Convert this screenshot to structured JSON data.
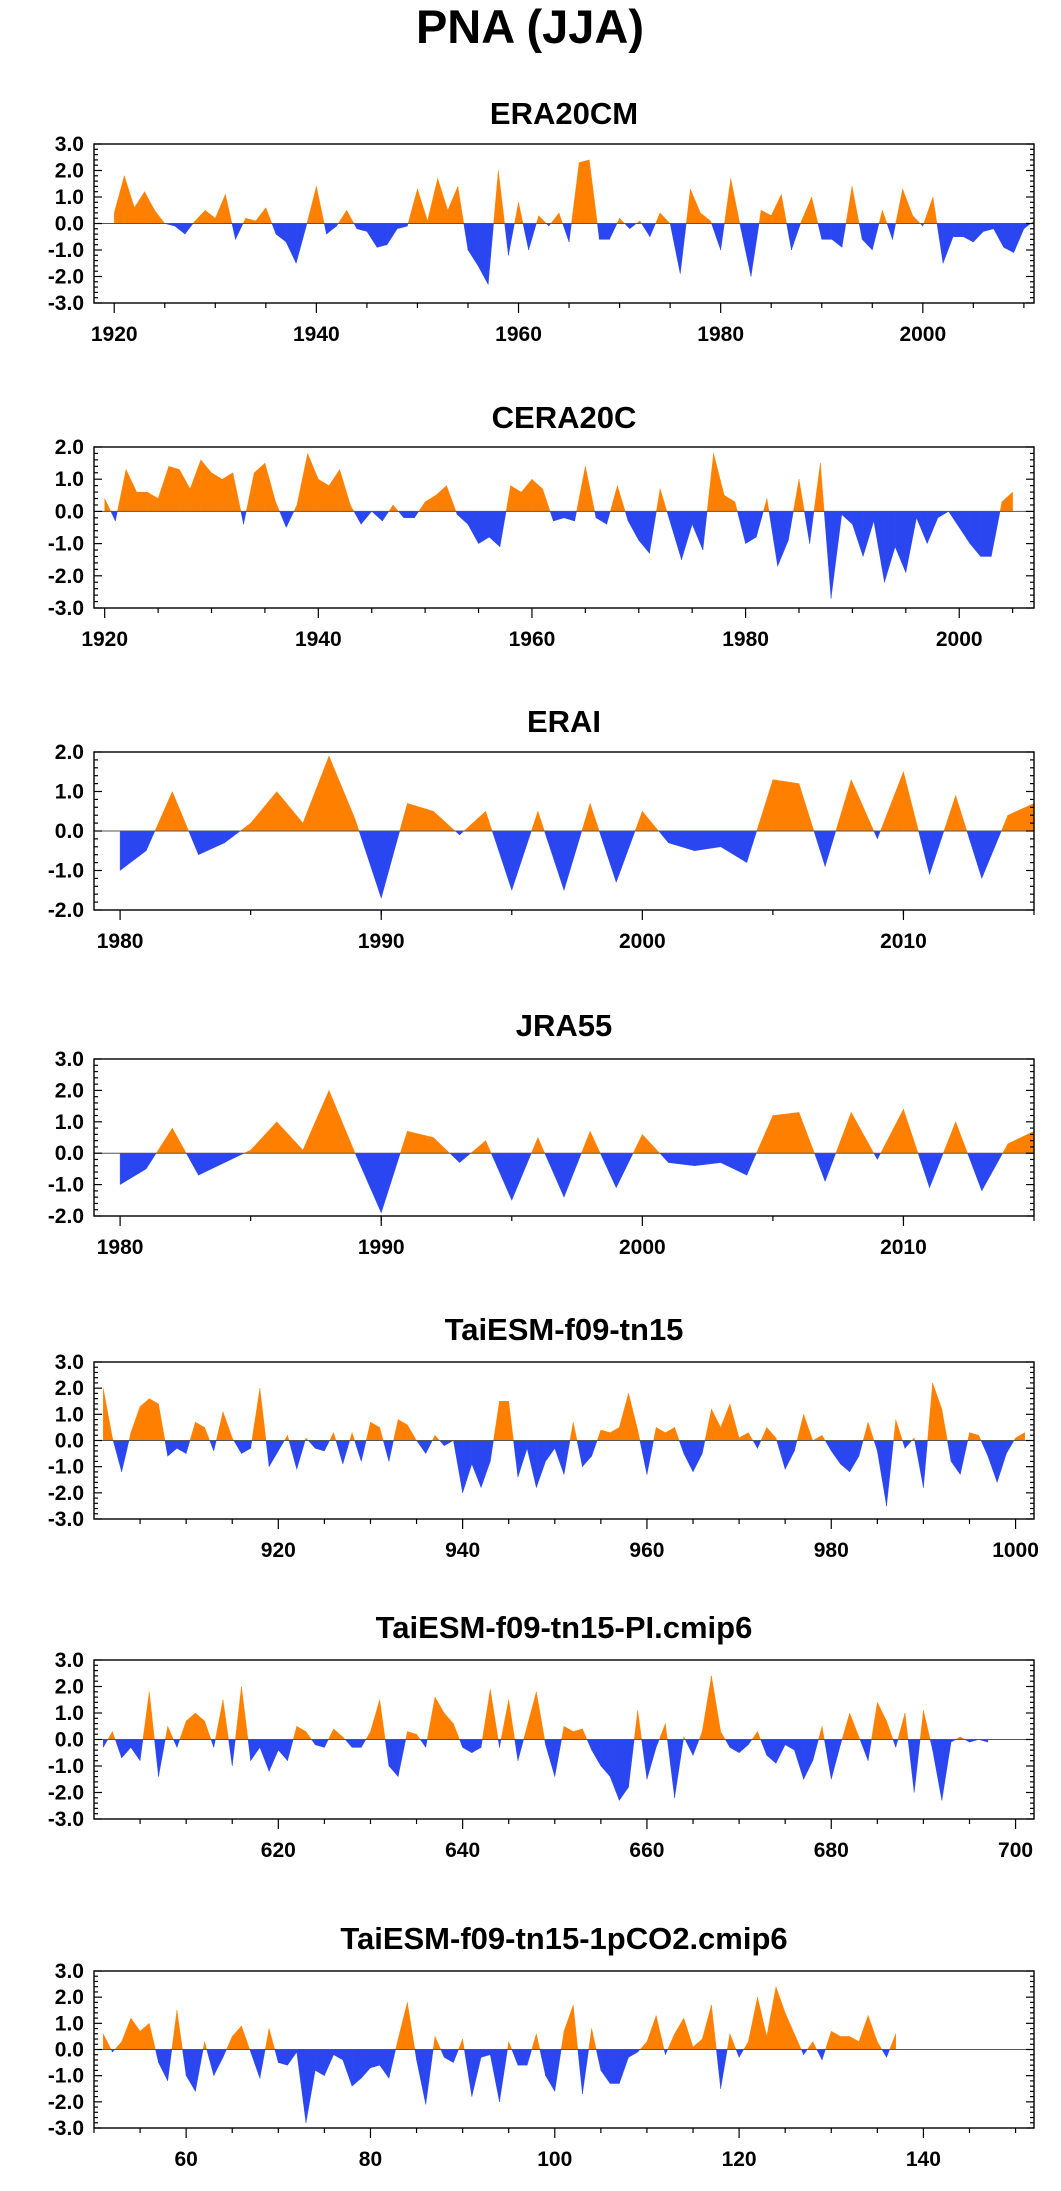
{
  "title": "PNA (JJA)",
  "colors": {
    "positive": "#ff8000",
    "negative": "#2a46f0"
  },
  "chart_data": [
    {
      "type": "area",
      "title": "ERA20CM",
      "x_start": 1920,
      "xlim": [
        1918,
        2011
      ],
      "ylim": [
        -3,
        3
      ],
      "y_ticks": [
        "-3.0",
        "-2.0",
        "-1.0",
        "0.0",
        "1.0",
        "2.0",
        "3.0"
      ],
      "x_ticks": [
        "1920",
        "1940",
        "1960",
        "1980",
        "2000"
      ],
      "values": [
        0.4,
        1.8,
        0.6,
        1.2,
        0.5,
        0.0,
        -0.1,
        -0.4,
        0.1,
        0.5,
        0.2,
        1.1,
        -0.6,
        0.2,
        0.1,
        0.6,
        -0.4,
        -0.7,
        -1.5,
        -0.1,
        1.4,
        -0.4,
        -0.1,
        0.5,
        -0.2,
        -0.3,
        -0.9,
        -0.8,
        -0.2,
        -0.1,
        1.3,
        0.1,
        1.7,
        0.5,
        1.4,
        -1.0,
        -1.6,
        -2.3,
        2.0,
        -1.2,
        0.8,
        -1.0,
        0.3,
        -0.1,
        0.4,
        -0.7,
        2.3,
        2.4,
        -0.6,
        -0.6,
        0.2,
        -0.2,
        0.1,
        -0.5,
        0.4,
        0.0,
        -1.9,
        1.3,
        0.4,
        0.1,
        -1.0,
        1.7,
        -0.2,
        -2.0,
        0.5,
        0.3,
        1.1,
        -1.0,
        0.1,
        1.0,
        -0.6,
        -0.6,
        -0.9,
        1.4,
        -0.6,
        -1.0,
        0.5,
        -0.6,
        1.3,
        0.3,
        -0.1,
        1.0,
        -1.5,
        -0.5,
        -0.5,
        -0.7,
        -0.3,
        -0.2,
        -0.9,
        -1.1,
        -0.2,
        0.1
      ]
    },
    {
      "type": "area",
      "title": "CERA20C",
      "x_start": 1920,
      "xlim": [
        1919,
        2007
      ],
      "ylim": [
        -3,
        2
      ],
      "y_ticks": [
        "-3.0",
        "-2.0",
        "-1.0",
        "0.0",
        "1.0",
        "2.0"
      ],
      "x_ticks": [
        "1920",
        "1940",
        "1960",
        "1980",
        "2000"
      ],
      "values": [
        0.4,
        -0.3,
        1.3,
        0.6,
        0.6,
        0.4,
        1.4,
        1.3,
        0.7,
        1.6,
        1.2,
        1.0,
        1.2,
        -0.4,
        1.2,
        1.5,
        0.3,
        -0.5,
        0.2,
        1.8,
        1.0,
        0.8,
        1.3,
        0.2,
        -0.4,
        0.0,
        -0.3,
        0.2,
        -0.2,
        -0.2,
        0.3,
        0.5,
        0.8,
        -0.1,
        -0.4,
        -1.0,
        -0.8,
        -1.1,
        0.8,
        0.6,
        1.0,
        0.7,
        -0.3,
        -0.2,
        -0.3,
        1.4,
        -0.2,
        -0.4,
        0.8,
        -0.3,
        -0.9,
        -1.3,
        0.7,
        -0.4,
        -1.5,
        -0.4,
        -1.2,
        1.8,
        0.5,
        0.3,
        -1.0,
        -0.8,
        0.4,
        -1.7,
        -0.9,
        1.0,
        -1.0,
        1.5,
        -2.7,
        -0.1,
        -0.4,
        -1.4,
        -0.3,
        -2.2,
        -1.1,
        -1.9,
        -0.2,
        -1.0,
        -0.2,
        0.0,
        -0.5,
        -1.0,
        -1.4,
        -1.4,
        0.3,
        0.6
      ]
    },
    {
      "type": "area",
      "title": "ERAI",
      "x_start": 1980,
      "xlim": [
        1979,
        2015
      ],
      "ylim": [
        -2,
        2
      ],
      "y_ticks": [
        "-2.0",
        "-1.0",
        "0.0",
        "1.0",
        "2.0"
      ],
      "x_ticks": [
        "1980",
        "1990",
        "2000",
        "2010"
      ],
      "values": [
        -1.0,
        -0.5,
        1.0,
        -0.6,
        -0.3,
        0.2,
        1.0,
        0.2,
        1.9,
        0.3,
        -1.7,
        0.7,
        0.5,
        -0.1,
        0.5,
        -1.5,
        0.5,
        -1.5,
        0.7,
        -1.3,
        0.5,
        -0.3,
        -0.5,
        -0.4,
        -0.8,
        1.3,
        1.2,
        -0.9,
        1.3,
        -0.2,
        1.5,
        -1.1,
        0.9,
        -1.2,
        0.4,
        0.7
      ]
    },
    {
      "type": "area",
      "title": "JRA55",
      "x_start": 1980,
      "xlim": [
        1979,
        2015
      ],
      "ylim": [
        -2,
        3
      ],
      "y_ticks": [
        "-2.0",
        "-1.0",
        "0.0",
        "1.0",
        "2.0",
        "3.0"
      ],
      "x_ticks": [
        "1980",
        "1990",
        "2000",
        "2010"
      ],
      "values": [
        -1.0,
        -0.5,
        0.8,
        -0.7,
        -0.3,
        0.1,
        1.0,
        0.1,
        2.0,
        0.0,
        -1.9,
        0.7,
        0.5,
        -0.3,
        0.4,
        -1.5,
        0.5,
        -1.4,
        0.7,
        -1.1,
        0.6,
        -0.3,
        -0.4,
        -0.3,
        -0.7,
        1.2,
        1.3,
        -0.9,
        1.3,
        -0.2,
        1.4,
        -1.1,
        1.0,
        -1.2,
        0.3,
        0.7
      ]
    },
    {
      "type": "area",
      "title": "TaiESM-f09-tn15",
      "x_start": 901,
      "xlim": [
        900,
        1002
      ],
      "ylim": [
        -3,
        3
      ],
      "y_ticks": [
        "-3.0",
        "-2.0",
        "-1.0",
        "0.0",
        "1.0",
        "2.0",
        "3.0"
      ],
      "x_ticks": [
        "920",
        "940",
        "960",
        "980",
        "1000"
      ],
      "values": [
        2.0,
        0.1,
        -1.2,
        0.3,
        1.3,
        1.6,
        1.4,
        -0.6,
        -0.3,
        -0.5,
        0.7,
        0.5,
        -0.4,
        1.1,
        0.1,
        -0.5,
        -0.3,
        2.0,
        -1.0,
        -0.4,
        0.2,
        -1.1,
        0.1,
        -0.3,
        -0.4,
        0.3,
        -0.9,
        0.3,
        -0.8,
        0.7,
        0.5,
        -0.8,
        0.8,
        0.6,
        0.0,
        -0.5,
        0.2,
        -0.2,
        0.0,
        -2.0,
        -0.9,
        -1.8,
        -0.8,
        1.5,
        1.5,
        -1.4,
        -0.3,
        -1.8,
        -0.8,
        -0.3,
        -1.3,
        0.7,
        -1.0,
        -0.6,
        0.4,
        0.3,
        0.5,
        1.8,
        0.4,
        -1.3,
        0.5,
        0.3,
        0.5,
        -0.5,
        -1.2,
        -0.5,
        1.2,
        0.5,
        1.4,
        0.1,
        0.3,
        -0.3,
        0.5,
        0.1,
        -1.1,
        -0.4,
        1.0,
        0.0,
        0.2,
        -0.4,
        -0.9,
        -1.2,
        -0.6,
        0.7,
        -0.4,
        -2.5,
        0.8,
        -0.3,
        0.1,
        -1.8,
        2.2,
        1.2,
        -0.8,
        -1.3,
        0.3,
        0.2,
        -0.6,
        -1.6,
        -0.5,
        0.1,
        0.3
      ]
    },
    {
      "type": "area",
      "title": "TaiESM-f09-tn15-PI.cmip6",
      "x_start": 601,
      "xlim": [
        600,
        702
      ],
      "ylim": [
        -3,
        3
      ],
      "y_ticks": [
        "-3.0",
        "-2.0",
        "-1.0",
        "0.0",
        "1.0",
        "2.0",
        "3.0"
      ],
      "x_ticks": [
        "620",
        "640",
        "660",
        "680",
        "700"
      ],
      "values": [
        -0.3,
        0.3,
        -0.7,
        -0.3,
        -0.8,
        1.8,
        -1.4,
        0.5,
        -0.3,
        0.7,
        1.0,
        0.7,
        -0.3,
        1.5,
        -1.0,
        2.0,
        -0.8,
        -0.3,
        -1.2,
        -0.4,
        -0.8,
        0.5,
        0.3,
        -0.2,
        -0.3,
        0.4,
        0.1,
        -0.3,
        -0.3,
        0.3,
        1.5,
        -1.0,
        -1.4,
        0.3,
        0.2,
        -0.3,
        1.6,
        1.0,
        0.6,
        -0.3,
        -0.5,
        -0.3,
        1.9,
        -0.3,
        1.5,
        -0.8,
        0.5,
        1.8,
        -0.2,
        -1.4,
        0.5,
        0.3,
        0.4,
        -0.4,
        -1.0,
        -1.4,
        -2.3,
        -1.8,
        1.1,
        -1.5,
        -0.3,
        0.6,
        -2.2,
        0.1,
        -0.6,
        0.3,
        2.4,
        0.3,
        -0.3,
        -0.5,
        -0.2,
        0.3,
        -0.6,
        -0.9,
        -0.2,
        -0.4,
        -1.5,
        -0.8,
        0.5,
        -1.5,
        -0.2,
        1.0,
        0.1,
        -0.8,
        1.4,
        0.7,
        -0.3,
        1.0,
        -2.0,
        1.1,
        -0.4,
        -2.3,
        -0.1,
        0.1,
        -0.1,
        0.0,
        -0.1
      ]
    },
    {
      "type": "area",
      "title": "TaiESM-f09-tn15-1pCO2.cmip6",
      "x_start": 51,
      "xlim": [
        50,
        152
      ],
      "ylim": [
        -3,
        3
      ],
      "y_ticks": [
        "-3.0",
        "-2.0",
        "-1.0",
        "0.0",
        "1.0",
        "2.0",
        "3.0"
      ],
      "x_ticks": [
        "60",
        "80",
        "100",
        "120",
        "140"
      ],
      "values": [
        0.6,
        -0.1,
        0.3,
        1.2,
        0.7,
        1.0,
        -0.5,
        -1.2,
        1.5,
        -1.0,
        -1.6,
        0.3,
        -1.0,
        -0.3,
        0.5,
        0.9,
        -0.1,
        -1.1,
        0.8,
        -0.5,
        -0.6,
        -0.1,
        -2.8,
        -0.8,
        -1.0,
        -0.2,
        -0.4,
        -1.4,
        -1.1,
        -0.7,
        -0.6,
        -1.1,
        0.4,
        1.8,
        -0.4,
        -2.1,
        0.5,
        -0.3,
        -0.5,
        0.4,
        -1.8,
        -0.3,
        -0.2,
        -2.0,
        0.3,
        -0.6,
        -0.6,
        0.6,
        -1.0,
        -1.6,
        0.7,
        1.7,
        -1.7,
        0.8,
        -0.8,
        -1.3,
        -1.3,
        -0.3,
        -0.1,
        0.3,
        1.3,
        -0.2,
        0.6,
        1.2,
        0.1,
        0.4,
        1.7,
        -1.5,
        0.6,
        -0.3,
        0.3,
        2.0,
        0.5,
        2.4,
        1.4,
        0.6,
        -0.2,
        0.3,
        -0.4,
        0.7,
        0.5,
        0.5,
        0.3,
        1.3,
        0.3,
        -0.3,
        0.6
      ]
    }
  ]
}
